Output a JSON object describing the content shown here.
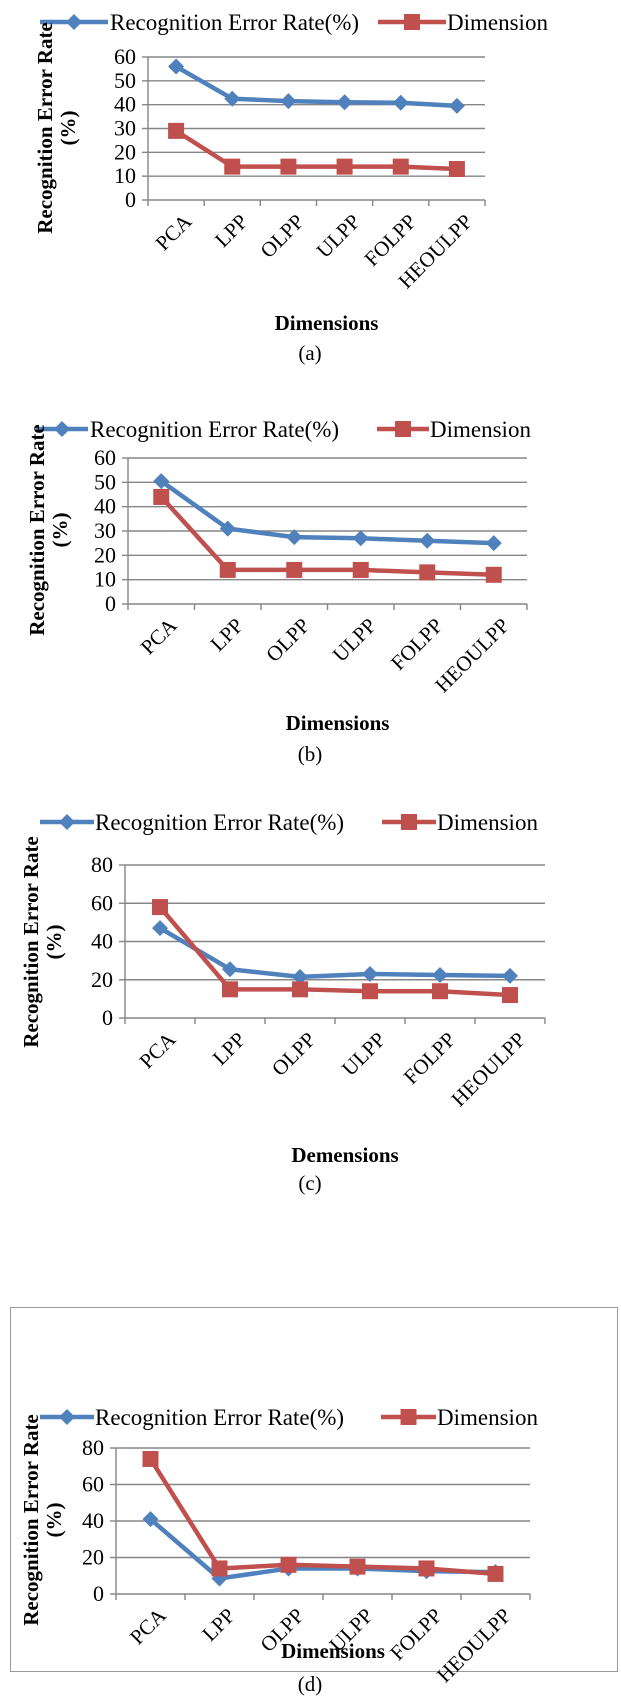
{
  "legend": {
    "series1_label": "Recognition Error Rate(%)",
    "series2_label": "Dimension"
  },
  "colors": {
    "series1": "#4f81bd",
    "series2": "#c0504d",
    "grid": "#868686",
    "axis": "#868686"
  },
  "chart_data": [
    {
      "type": "line",
      "caption": "(a)",
      "xlabel": "Dimensions",
      "ylabel": "Recognition Error Rate (%)",
      "categories": [
        "PCA",
        "LPP",
        "OLPP",
        "ULPP",
        "FOLPP",
        "HEOULPP"
      ],
      "ylim": [
        0,
        60
      ],
      "yticks": [
        0,
        10,
        20,
        30,
        40,
        50,
        60
      ],
      "grid": true,
      "legend_position": "top",
      "series": [
        {
          "name": "Recognition Error Rate(%)",
          "values": [
            56,
            42.5,
            41.5,
            41,
            40.8,
            39.5
          ]
        },
        {
          "name": "Dimension",
          "values": [
            29,
            14,
            14,
            14,
            14,
            13
          ]
        }
      ]
    },
    {
      "type": "line",
      "caption": "(b)",
      "xlabel": "Dimensions",
      "ylabel": "Recognition Error Rate (%)",
      "categories": [
        "PCA",
        "LPP",
        "OLPP",
        "ULPP",
        "FOLPP",
        "HEOULPP"
      ],
      "ylim": [
        0,
        60
      ],
      "yticks": [
        0,
        10,
        20,
        30,
        40,
        50,
        60
      ],
      "grid": true,
      "legend_position": "top",
      "series": [
        {
          "name": "Recognition Error Rate(%)",
          "values": [
            50.5,
            31,
            27.5,
            27,
            26,
            25
          ]
        },
        {
          "name": "Dimension",
          "values": [
            44,
            14,
            14,
            14,
            13,
            12
          ]
        }
      ]
    },
    {
      "type": "line",
      "caption": "(c)",
      "xlabel": "Demensions",
      "ylabel": "Recognition Error Rate (%)",
      "categories": [
        "PCA",
        "LPP",
        "OLPP",
        "ULPP",
        "FOLPP",
        "HEOULPP"
      ],
      "ylim": [
        0,
        80
      ],
      "yticks": [
        0,
        20,
        40,
        60,
        80
      ],
      "grid": true,
      "legend_position": "top",
      "series": [
        {
          "name": "Recognition Error Rate(%)",
          "values": [
            47,
            25.5,
            21.5,
            23,
            22.5,
            22
          ]
        },
        {
          "name": "Dimension",
          "values": [
            58,
            15,
            15,
            14,
            14,
            12
          ]
        }
      ]
    },
    {
      "type": "line",
      "caption": "(d)",
      "xlabel": "Dimensions",
      "ylabel": "Recognition Error Rate (%)",
      "categories": [
        "PCA",
        "LPP",
        "OLPP",
        "ULPP",
        "FOLPP",
        "HEOULPP"
      ],
      "ylim": [
        0,
        80
      ],
      "yticks": [
        0,
        20,
        40,
        60,
        80
      ],
      "grid": true,
      "legend_position": "top",
      "series": [
        {
          "name": "Recognition Error Rate(%)",
          "values": [
            41,
            8.5,
            14,
            14,
            12.5,
            12
          ]
        },
        {
          "name": "Dimension",
          "values": [
            74,
            14,
            16,
            15,
            14,
            11
          ]
        }
      ]
    }
  ]
}
